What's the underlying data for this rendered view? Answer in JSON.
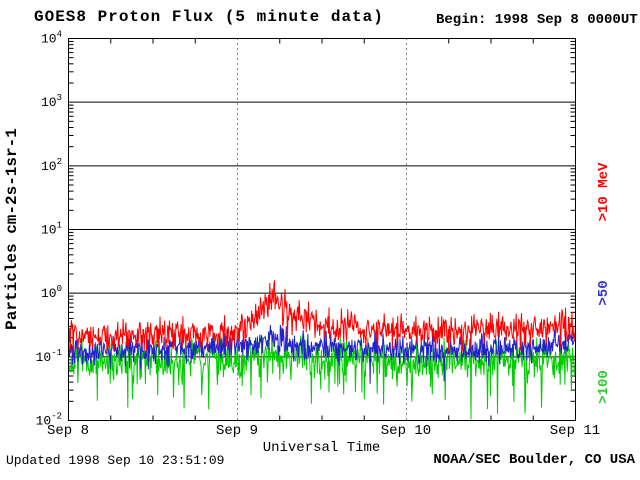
{
  "header": {
    "title": "GOES8 Proton Flux (5 minute data)",
    "begin_label": "Begin: 1998 Sep 8 0000UT"
  },
  "footer": {
    "updated": "Updated 1998 Sep 10 23:51:09",
    "source": "NOAA/SEC Boulder, CO USA"
  },
  "chart_data": {
    "type": "line",
    "title": "GOES8 Proton Flux (5 minute data)",
    "xlabel": "Universal Time",
    "ylabel": "Particles cm-2s-1sr-1",
    "x_tick_labels": [
      "Sep 8",
      "Sep 9",
      "Sep 10",
      "Sep 11"
    ],
    "x_range_days": [
      0,
      3
    ],
    "begin_time": "1998 Sep 8 0000UT",
    "ylog_exponent_ticks": [
      4,
      3,
      2,
      1,
      0,
      -1,
      -2
    ],
    "ylim": [
      0.01,
      10000
    ],
    "y_scale": "log",
    "grid": {
      "horizontal": "solid",
      "vertical": "dotted-at-day-boundaries"
    },
    "samples_per_day": 288,
    "legend": [
      {
        "label": ">10 MeV",
        "color": "#ff0000"
      },
      {
        "label": ">50",
        "color": "#3333cc"
      },
      {
        "label": ">100",
        "color": "#33cc33"
      }
    ],
    "series": [
      {
        "name": ">10 MeV",
        "color": "#ff0000",
        "seed": 101,
        "noise_sigma_log10": 0.13,
        "dip_probability": 0.03,
        "dip_depth_log10": 0.25,
        "baseline_log10_points": [
          [
            0,
            -0.68
          ],
          [
            0.3,
            -0.63
          ],
          [
            0.6,
            -0.66
          ],
          [
            0.9,
            -0.62
          ],
          [
            1.05,
            -0.55
          ],
          [
            1.15,
            -0.22
          ],
          [
            1.22,
            -0.06
          ],
          [
            1.32,
            -0.32
          ],
          [
            1.5,
            -0.5
          ],
          [
            1.75,
            -0.56
          ],
          [
            2.1,
            -0.6
          ],
          [
            2.5,
            -0.58
          ],
          [
            2.8,
            -0.55
          ],
          [
            3,
            -0.5
          ]
        ]
      },
      {
        "name": ">50",
        "color": "#2222cc",
        "seed": 202,
        "noise_sigma_log10": 0.11,
        "dip_probability": 0.04,
        "dip_depth_log10": 0.3,
        "baseline_log10_points": [
          [
            0,
            -0.9
          ],
          [
            0.4,
            -0.87
          ],
          [
            0.8,
            -0.85
          ],
          [
            1.1,
            -0.82
          ],
          [
            1.22,
            -0.72
          ],
          [
            1.35,
            -0.8
          ],
          [
            1.6,
            -0.85
          ],
          [
            2,
            -0.88
          ],
          [
            2.5,
            -0.86
          ],
          [
            3,
            -0.82
          ]
        ]
      },
      {
        "name": ">100",
        "color": "#00cc00",
        "seed": 303,
        "noise_sigma_log10": 0.16,
        "dip_probability": 0.09,
        "dip_depth_log10": 0.75,
        "baseline_log10_points": [
          [
            0,
            -1.06
          ],
          [
            0.5,
            -1.05
          ],
          [
            1,
            -1.03
          ],
          [
            1.22,
            -0.98
          ],
          [
            1.5,
            -1.04
          ],
          [
            2,
            -1.06
          ],
          [
            2.5,
            -1.05
          ],
          [
            3,
            -1.02
          ]
        ]
      }
    ]
  }
}
